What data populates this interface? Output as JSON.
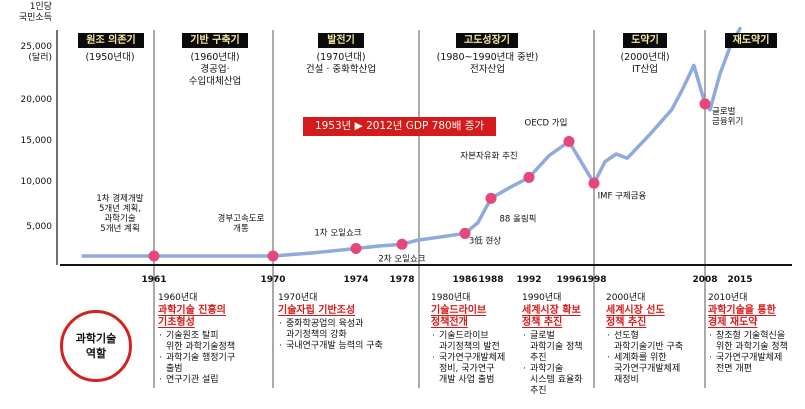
{
  "y_axis_title": "1인당\n국민소득",
  "y_ticks": [
    {
      "label": "25,000\n(달러)",
      "value": 25000
    },
    {
      "label": "20,000",
      "value": 20000
    },
    {
      "label": "15,000",
      "value": 15000
    },
    {
      "label": "10,000",
      "value": 10000
    },
    {
      "label": "5,000",
      "value": 5000
    }
  ],
  "colors": {
    "line": "#8faadc",
    "point": "#e8457a",
    "red": "#d51a1a",
    "tag_bg": "#0b0b0b",
    "tag_text": "#f3e7a2",
    "axis": "#111111",
    "divider": "#555555"
  },
  "eras": [
    {
      "tag": "원조 의존기",
      "desc": "(1950년대)"
    },
    {
      "tag": "기반 구축기",
      "desc": "(1960년대)\n경공업·\n수입대체산업"
    },
    {
      "tag": "발전기",
      "desc": "(1970년대)\n건설 · 중화학산업"
    },
    {
      "tag": "고도성장기",
      "desc": "(1980~1990년대 중반)\n전자산업"
    },
    {
      "tag": "도약기",
      "desc": "(2000년대)\nIT산업"
    },
    {
      "tag": "재도약기",
      "desc": ""
    }
  ],
  "banner": "1953년 ▶ 2012년 GDP 780배 증가",
  "x_labels": [
    {
      "label": "1961",
      "year": 1961
    },
    {
      "label": "1970",
      "year": 1970
    },
    {
      "label": "1974",
      "year": 1974
    },
    {
      "label": "1978",
      "year": 1978
    },
    {
      "label": "1986",
      "year": 1986
    },
    {
      "label": "1988",
      "year": 1988
    },
    {
      "label": "1992",
      "year": 1992
    },
    {
      "label": "1996",
      "year": 1996
    },
    {
      "label": "1998",
      "year": 1998
    },
    {
      "label": "2008",
      "year": 2008
    },
    {
      "label": "2015",
      "year": 2015
    }
  ],
  "chart_data": {
    "type": "line",
    "title": "",
    "ylabel": "1인당 국민소득 (달러)",
    "xlabel": "",
    "ylim": [
      0,
      25000
    ],
    "grid": false,
    "series": [
      {
        "values_x": [
          1953,
          1961,
          1965,
          1970,
          1972,
          1974,
          1976,
          1978,
          1980,
          1983,
          1986,
          1987,
          1988,
          1990,
          1992,
          1994,
          1996,
          1997,
          1998,
          1999,
          2000,
          2001,
          2003,
          2005,
          2006,
          2007,
          2008,
          2009,
          2011,
          2013,
          2015
        ],
        "values_y": [
          0,
          0,
          0,
          0,
          400,
          900,
          1200,
          1400,
          1900,
          2300,
          2700,
          4000,
          6900,
          8200,
          9400,
          12000,
          13700,
          11200,
          8700,
          11300,
          12200,
          11700,
          14500,
          17500,
          20000,
          22800,
          18200,
          17500,
          21800,
          25000,
          27200
        ]
      }
    ],
    "points": [
      {
        "label": "1차 경제개발\n5개년 계획,\n과학기술\n5개년 계획",
        "year": 1961,
        "value": 0
      },
      {
        "label": "경부고속도로\n개통",
        "year": 1970,
        "value": 0
      },
      {
        "label": "1차 오일쇼크",
        "year": 1974,
        "value": 900
      },
      {
        "label": "2차 오일쇼크",
        "year": 1978,
        "value": 1400
      },
      {
        "label": "3低 현상",
        "year": 1986,
        "value": 2700
      },
      {
        "label": "88 올림픽",
        "year": 1988,
        "value": 6900
      },
      {
        "label": "자본자유화 추진",
        "year": 1992,
        "value": 9400
      },
      {
        "label": "OECD 가입",
        "year": 1996,
        "value": 13700
      },
      {
        "label": "IMF 구제금융",
        "year": 1998,
        "value": 8700
      },
      {
        "label": "글로벌\n금융위기",
        "year": 2008,
        "value": 18200
      }
    ]
  },
  "role": {
    "title": "과학기술\n역할"
  },
  "columns": [
    {
      "decade": "1960년대",
      "head": "과학기술 진흥의\n기초형성",
      "items": [
        "기술원조 탈피\n위한 과학기술정책",
        "과학기술 행정기구\n출범",
        "연구기관 설립"
      ]
    },
    {
      "decade": "1970년대",
      "head": "기술자립 기반조성",
      "items": [
        "중화학공업의 육성과\n과기정책의 강화",
        "국내연구개발 능력의 구축"
      ]
    },
    {
      "decade": "1980년대",
      "head": "기술드라이브\n정책전개",
      "items": [
        "기술드라이브\n과기정책의 발전",
        "국가연구개발체제\n정비, 국가연구\n개발 사업 출범"
      ]
    },
    {
      "decade": "1990년대",
      "head": "세계시장 확보\n정책 추진",
      "items": [
        "글로벌\n과학기술 정책\n추진",
        "과학기술\n시스템 효율화\n추진"
      ]
    },
    {
      "decade": "2000년대",
      "head": "세계시장 선도\n정책 추진",
      "items": [
        "선도형\n과학기술기반 구축",
        "세계화를 위한\n국가연구개발체제\n재정비"
      ]
    },
    {
      "decade": "2010년대",
      "head": "과학기술을 통한\n경제 재도약",
      "items": [
        "창조형 기술혁신을\n위한 과학기술 정책",
        "국가연구개발체제\n전면 개편"
      ]
    }
  ]
}
